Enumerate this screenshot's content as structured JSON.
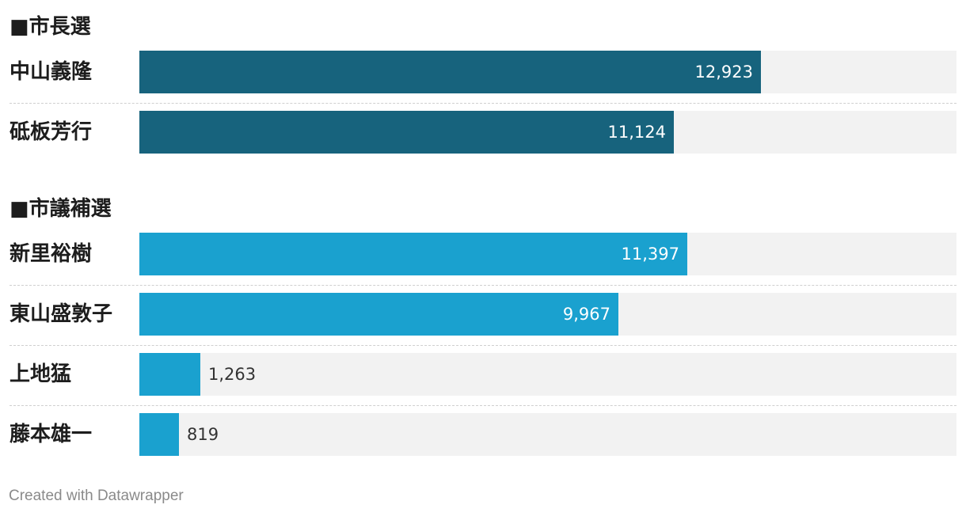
{
  "chart_data": {
    "type": "bar",
    "orientation": "horizontal",
    "xlim": [
      0,
      17000
    ],
    "grid": false,
    "legend": "none",
    "groups": [
      {
        "title": "■市長選",
        "color": "#17637d",
        "rows": [
          {
            "label": "中山義隆",
            "value": 12923,
            "value_label": "12,923"
          },
          {
            "label": "砥板芳行",
            "value": 11124,
            "value_label": "11,124"
          }
        ]
      },
      {
        "title": "■市議補選",
        "color": "#1aa1cf",
        "rows": [
          {
            "label": "新里裕樹",
            "value": 11397,
            "value_label": "11,397"
          },
          {
            "label": "東山盛敦子",
            "value": 9967,
            "value_label": "9,967"
          },
          {
            "label": "上地猛",
            "value": 1263,
            "value_label": "1,263"
          },
          {
            "label": "藤本雄一",
            "value": 819,
            "value_label": "819"
          }
        ]
      }
    ]
  },
  "footer": {
    "credit": "Created with Datawrapper"
  }
}
